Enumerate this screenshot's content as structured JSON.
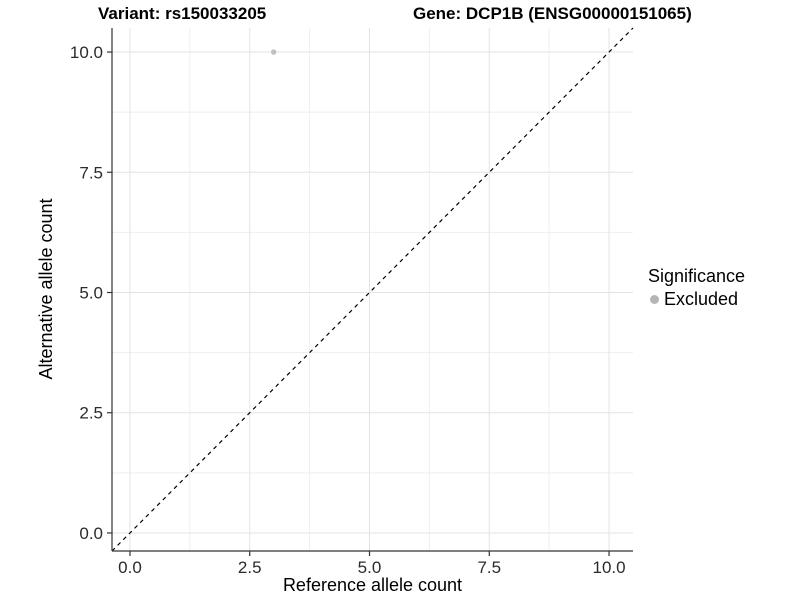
{
  "chart_data": {
    "type": "scatter",
    "title_left": "Variant: rs150033205",
    "title_right": "Gene: DCP1B (ENSG00000151065)",
    "xlabel": "Reference allele count",
    "ylabel": "Alternative allele count",
    "xlim": [
      -0.375,
      10.5
    ],
    "ylim": [
      -0.375,
      10.5
    ],
    "x_ticks": {
      "values": [
        0,
        2.5,
        5,
        7.5,
        10
      ],
      "labels": [
        "0.0",
        "2.5",
        "5.0",
        "7.5",
        "10.0"
      ]
    },
    "y_ticks": {
      "values": [
        0,
        2.5,
        5,
        7.5,
        10
      ],
      "labels": [
        "0.0",
        "2.5",
        "5.0",
        "7.5",
        "10.0"
      ]
    },
    "minor_ticks": [
      1.25,
      3.75,
      6.25,
      8.75
    ],
    "grid": "major and minor gridlines, white panel background",
    "reference_line": {
      "type": "identity y=x",
      "style": "dashed",
      "color": "#000000"
    },
    "series": [
      {
        "name": "Excluded",
        "color": "#c0c0c0",
        "points": [
          {
            "x": 3,
            "y": 10
          }
        ]
      }
    ],
    "legend": {
      "title": "Significance",
      "position": "right",
      "items": [
        {
          "label": "Excluded",
          "color": "#b5b5b5"
        }
      ]
    },
    "colors": {
      "background": "#ffffff",
      "grid_major": "#e3e3e3",
      "grid_minor": "#eeeeee",
      "axis_line": "#333333",
      "tick_text": "#2b2b2b",
      "title_text": "#000000"
    }
  }
}
